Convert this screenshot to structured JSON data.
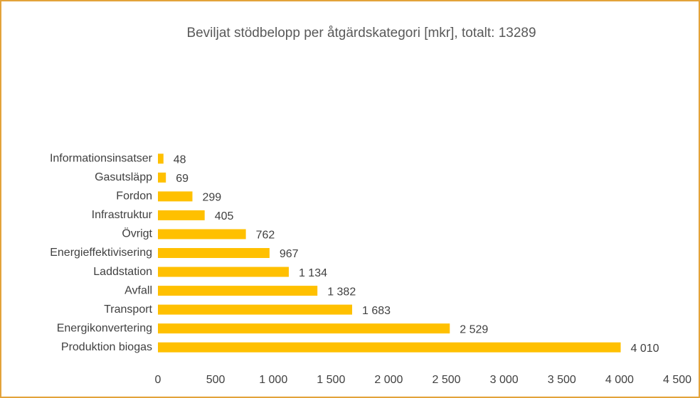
{
  "chart_data": {
    "type": "bar",
    "orientation": "horizontal",
    "title": "Beviljat stödbelopp per åtgärdskategori [mkr], totalt: 13289",
    "categories": [
      "Informationsinsatser",
      "Gasutsläpp",
      "Fordon",
      "Infrastruktur",
      "Övrigt",
      "Energieffektivisering",
      "Laddstation",
      "Avfall",
      "Transport",
      "Energikonvertering",
      "Produktion biogas"
    ],
    "values": [
      48,
      69,
      299,
      405,
      762,
      967,
      1134,
      1382,
      1683,
      2529,
      4010
    ],
    "value_labels": [
      "48",
      "69",
      "299",
      "405",
      "762",
      "967",
      "1 134",
      "1 382",
      "1 683",
      "2 529",
      "4 010"
    ],
    "color": "#ffc000",
    "xlim": [
      0,
      4500
    ],
    "xticks": [
      0,
      500,
      {
        "value": 1000,
        "label": "1 000"
      },
      {
        "value": 1500,
        "label": "1 500"
      },
      {
        "value": 2000,
        "label": "2 000"
      },
      {
        "value": 2500,
        "label": "2 500"
      },
      {
        "value": 3000,
        "label": "3 000"
      },
      {
        "value": 3500,
        "label": "3 500"
      },
      {
        "value": 4000,
        "label": "4 000"
      },
      {
        "value": 4500,
        "label": "4 500"
      }
    ],
    "grid": false
  }
}
